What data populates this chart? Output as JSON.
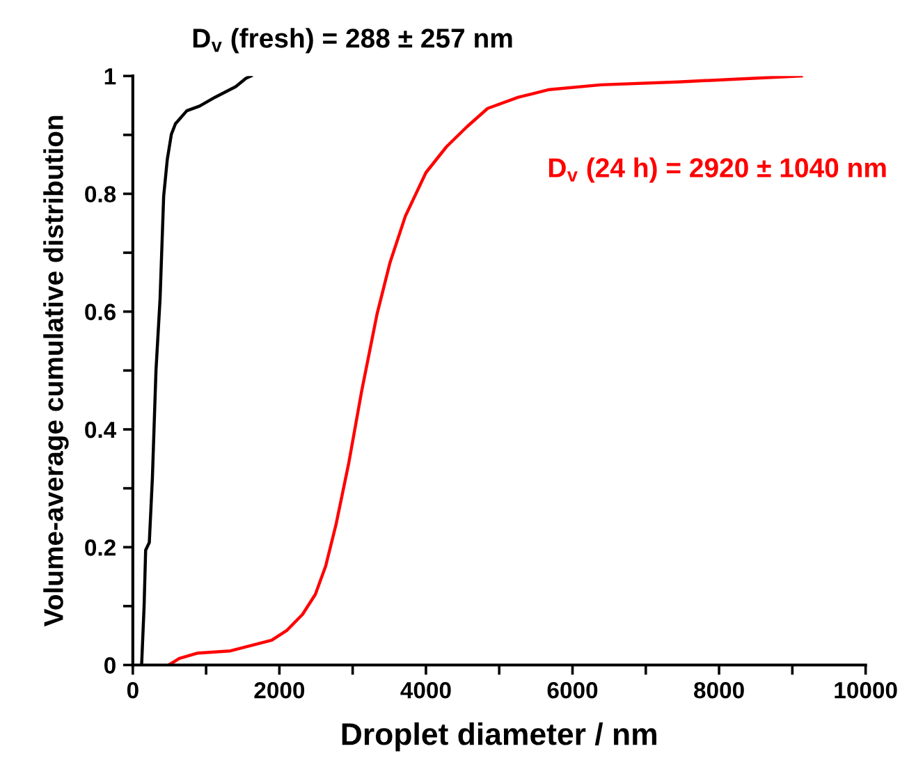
{
  "chart_data": {
    "type": "line",
    "xlabel": "Droplet diameter / nm",
    "ylabel": "Volume-average cumulative distribution",
    "series": [
      {
        "name": "D$_{v}$ (fresh) = 288 ± 257 nm",
        "color": "#000000",
        "x": [
          120,
          154,
          175,
          225,
          267,
          316,
          372,
          421,
          470,
          526,
          582,
          737,
          912,
          1123,
          1404,
          1544,
          1614
        ],
        "values": [
          0,
          0.1,
          0.195,
          0.208,
          0.317,
          0.5,
          0.622,
          0.796,
          0.858,
          0.901,
          0.919,
          0.941,
          0.949,
          0.964,
          0.982,
          0.996,
          1.0
        ]
      },
      {
        "name": "D$_{v}$ (24 h) = 2920 ± 1040 nm",
        "color": "#ff0000",
        "x": [
          491,
          632,
          877,
          1333,
          1895,
          2105,
          2316,
          2491,
          2632,
          2772,
          2947,
          3123,
          3333,
          3509,
          3719,
          4000,
          4281,
          4561,
          4842,
          5263,
          5684,
          6386,
          7439,
          9123
        ],
        "values": [
          0,
          0.011,
          0.02,
          0.024,
          0.042,
          0.059,
          0.086,
          0.12,
          0.168,
          0.238,
          0.343,
          0.465,
          0.596,
          0.683,
          0.762,
          0.836,
          0.88,
          0.914,
          0.945,
          0.964,
          0.977,
          0.985,
          0.99,
          1.0
        ]
      }
    ],
    "xlim": [
      0,
      10000
    ],
    "xticks": [
      0,
      {
        "value": 1000,
        "label": null
      },
      2000,
      {
        "value": 3000,
        "label": null
      },
      4000,
      {
        "value": 5000,
        "label": null
      },
      6000,
      {
        "value": 7000,
        "label": null
      },
      8000,
      {
        "value": 9000,
        "label": null
      },
      10000
    ],
    "ylim": [
      0,
      1
    ],
    "yticks": [
      0,
      {
        "value": 0.1,
        "label": null
      },
      0.2,
      {
        "value": 0.3,
        "label": null
      },
      0.4,
      {
        "value": 0.5,
        "label": null
      },
      0.6,
      {
        "value": 0.7,
        "label": null
      },
      0.8,
      {
        "value": 0.9,
        "label": null
      },
      1
    ],
    "grid": false,
    "legend": false
  }
}
